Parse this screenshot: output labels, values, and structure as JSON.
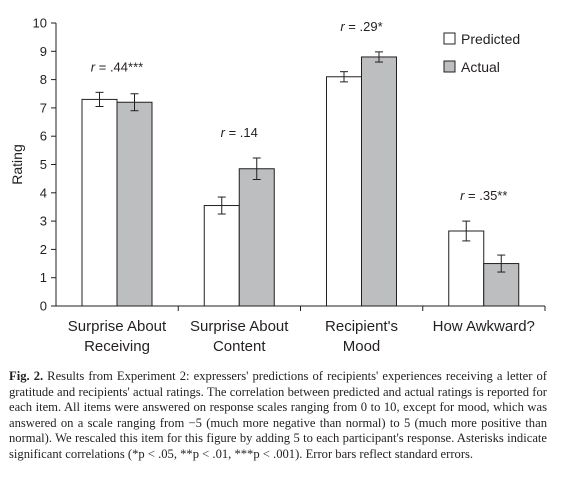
{
  "chart_data": {
    "type": "bar",
    "ylabel": "Rating",
    "ylim": [
      0,
      10
    ],
    "yticks": [
      "0",
      "1",
      "2",
      "3",
      "4",
      "5",
      "6",
      "7",
      "8",
      "9",
      "10"
    ],
    "categories": [
      [
        "Surprise About",
        "Receiving"
      ],
      [
        "Surprise About",
        "Content"
      ],
      [
        "Recipient's",
        "Mood"
      ],
      [
        "How Awkward?"
      ]
    ],
    "series": [
      {
        "name": "Predicted",
        "values": [
          7.3,
          3.55,
          8.1,
          2.65
        ],
        "errors": [
          0.25,
          0.3,
          0.18,
          0.35
        ],
        "color": "#ffffff"
      },
      {
        "name": "Actual",
        "values": [
          7.2,
          4.85,
          8.8,
          1.5
        ],
        "errors": [
          0.3,
          0.38,
          0.18,
          0.3
        ],
        "color": "#bcbec0"
      }
    ],
    "correlations": [
      {
        "r": "r",
        "value": " = .44***"
      },
      {
        "r": "r",
        "value": " = .14"
      },
      {
        "r": "r",
        "value": " = .29*"
      },
      {
        "r": "r",
        "value": " = .35**"
      }
    ],
    "legend_position": "top-right",
    "grid": false
  },
  "caption": {
    "label": "Fig. 2.",
    "text": "Results from Experiment 2: expressers' predictions of recipients' experiences receiving a letter of gratitude and recipients' actual ratings. The correlation between predicted and actual ratings is reported for each item. All items were answered on response scales ranging from 0 to 10, except for mood, which was answered on a scale ranging from −5 (much more negative than normal) to 5 (much more positive than normal). We rescaled this item for this figure by adding 5 to each participant's response. Asterisks indicate significant correlations (*p < .05, **p < .01, ***p < .001). Error bars reflect standard errors."
  }
}
